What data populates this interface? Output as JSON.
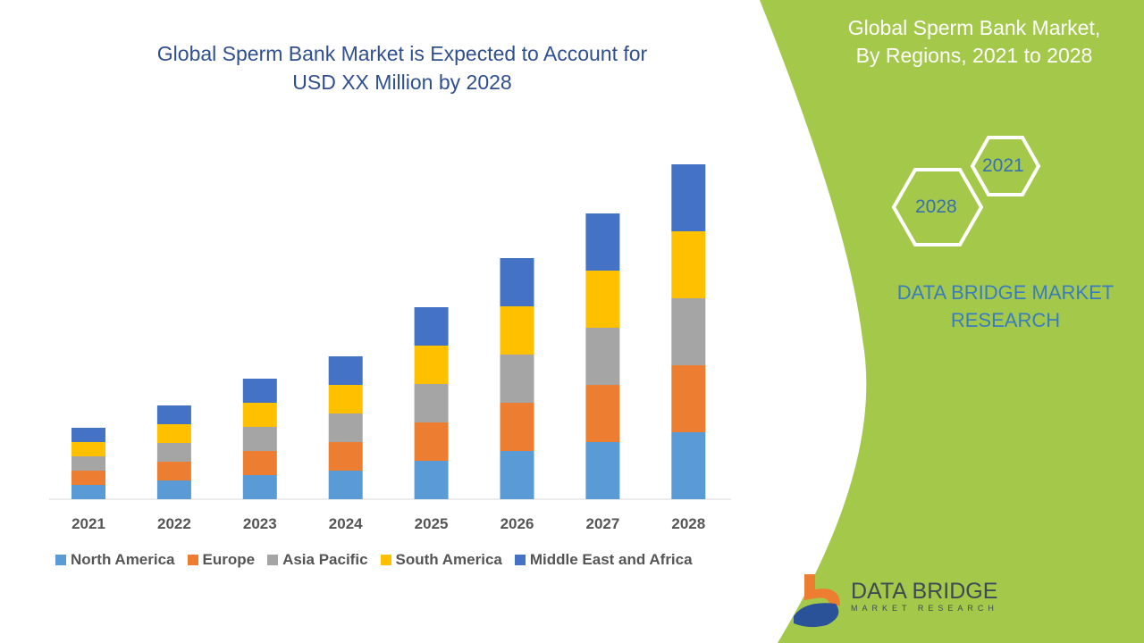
{
  "title_line1": "Global Sperm Bank Market is Expected to Account for",
  "title_line2": "USD XX Million by 2028",
  "panel": {
    "title_line1": "Global Sperm Bank Market,",
    "title_line2": "By Regions, 2021 to 2028",
    "hex_a": "2021",
    "hex_b": "2028",
    "brand_line1": "DATA BRIDGE MARKET",
    "brand_line2": "RESEARCH",
    "logo_main": "DATA BRIDGE",
    "logo_sub": "MARKET RESEARCH",
    "panel_color": "#a4c94a"
  },
  "chart_data": {
    "type": "bar",
    "stacked": true,
    "title": "Global Sperm Bank Market is Expected to Account for USD XX Million by 2028",
    "categories": [
      "2021",
      "2022",
      "2023",
      "2024",
      "2025",
      "2026",
      "2027",
      "2028"
    ],
    "y_axis_shown": false,
    "grid": false,
    "legend_position": "bottom",
    "series": [
      {
        "name": "North America",
        "color": "#5b9bd5",
        "values": [
          16,
          21,
          27,
          32,
          43,
          54,
          64,
          75
        ]
      },
      {
        "name": "Europe",
        "color": "#ed7d31",
        "values": [
          16,
          21,
          27,
          32,
          43,
          54,
          64,
          75
        ]
      },
      {
        "name": "Asia Pacific",
        "color": "#a5a5a5",
        "values": [
          16,
          21,
          27,
          32,
          43,
          54,
          64,
          75
        ]
      },
      {
        "name": "South America",
        "color": "#ffc000",
        "values": [
          16,
          21,
          27,
          32,
          43,
          54,
          64,
          75
        ]
      },
      {
        "name": "Middle East and Africa",
        "color": "#4472c4",
        "values": [
          16,
          21,
          27,
          32,
          43,
          54,
          64,
          75
        ]
      }
    ]
  }
}
